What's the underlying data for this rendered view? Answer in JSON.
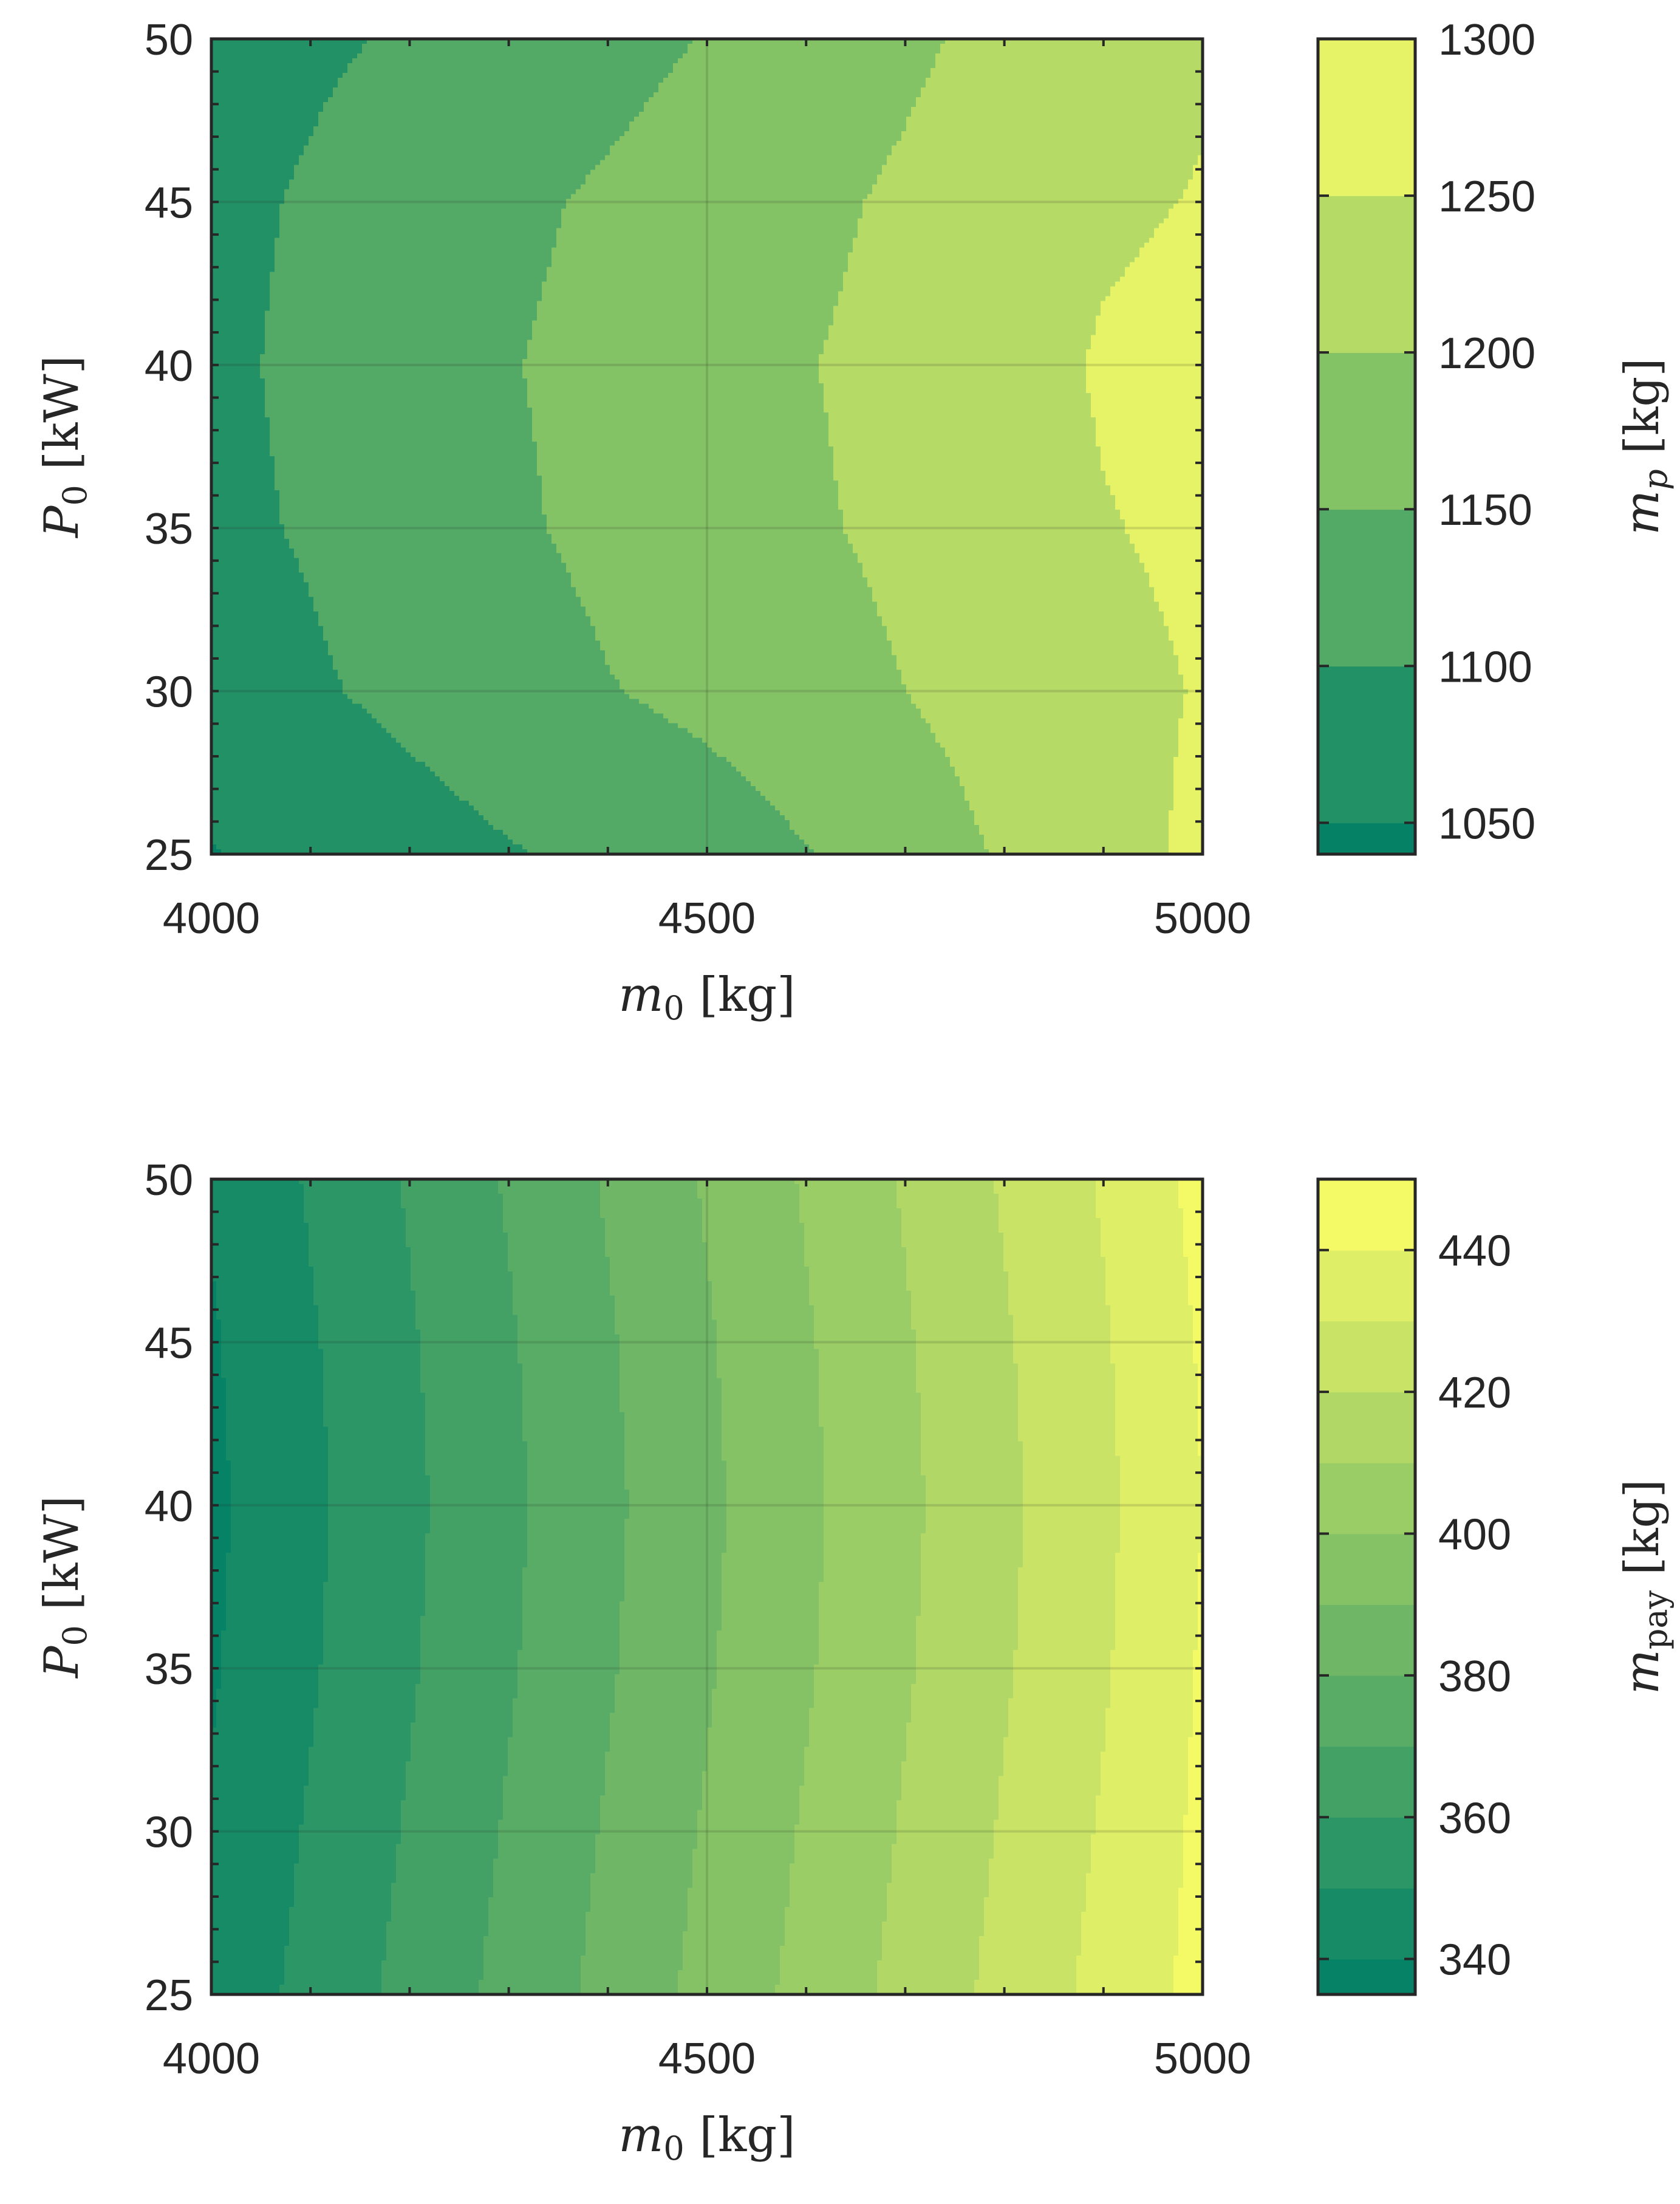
{
  "chart_data": [
    {
      "type": "heatmap",
      "subtype": "filled-contour",
      "xlabel": {
        "var": "m",
        "sub": "0",
        "unit": "[kg]"
      },
      "ylabel": {
        "var": "P",
        "sub": "0",
        "unit": "[kW]"
      },
      "colorbar_label": {
        "var": "m",
        "sub": "p",
        "unit": "[kg]"
      },
      "xlim": [
        4000,
        5000
      ],
      "ylim": [
        25,
        50
      ],
      "xticks": [
        "4000",
        "4500",
        "5000"
      ],
      "yticks": [
        "25",
        "30",
        "35",
        "40",
        "45",
        "50"
      ],
      "clim": [
        1040,
        1300
      ],
      "colorbar_ticks": [
        "1050",
        "1100",
        "1150",
        "1200",
        "1250",
        "1300"
      ],
      "levels": [
        1050,
        1100,
        1150,
        1200,
        1250
      ],
      "grid": true,
      "colormap": "summer",
      "x": [
        4000,
        4100,
        4200,
        4300,
        4400,
        4500,
        4600,
        4700,
        4800,
        4900,
        5000
      ],
      "y": [
        25,
        30,
        35,
        40,
        45,
        50
      ],
      "z": [
        [
          1048,
          1062,
          1080,
          1097,
          1110,
          1125,
          1148,
          1175,
          1205,
          1235,
          1258
        ],
        [
          1078,
          1094,
          1112,
          1130,
          1148,
          1162,
          1180,
          1200,
          1220,
          1240,
          1252
        ],
        [
          1090,
          1104,
          1124,
          1144,
          1160,
          1176,
          1194,
          1210,
          1230,
          1248,
          1257
        ],
        [
          1092,
          1108,
          1128,
          1148,
          1162,
          1178,
          1198,
          1214,
          1234,
          1254,
          1262
        ],
        [
          1090,
          1104,
          1122,
          1142,
          1156,
          1171,
          1190,
          1207,
          1226,
          1244,
          1252
        ],
        [
          1086,
          1094,
          1104,
          1120,
          1136,
          1152,
          1172,
          1192,
          1212,
          1232,
          1246
        ]
      ]
    },
    {
      "type": "heatmap",
      "subtype": "filled-contour",
      "xlabel": {
        "var": "m",
        "sub": "0",
        "unit": "[kg]"
      },
      "ylabel": {
        "var": "P",
        "sub": "0",
        "unit": "[kW]"
      },
      "colorbar_label": {
        "var": "m",
        "sub": "pay",
        "unit": "[kg]"
      },
      "xlim": [
        4000,
        5000
      ],
      "ylim": [
        25,
        50
      ],
      "xticks": [
        "4000",
        "4500",
        "5000"
      ],
      "yticks": [
        "25",
        "30",
        "35",
        "40",
        "45",
        "50"
      ],
      "clim": [
        335,
        450
      ],
      "colorbar_ticks": [
        "340",
        "360",
        "380",
        "400",
        "420",
        "440"
      ],
      "levels": [
        340,
        350,
        360,
        370,
        380,
        390,
        400,
        410,
        420,
        430,
        440
      ],
      "grid": true,
      "colormap": "summer",
      "x": [
        4000,
        4100,
        4200,
        4300,
        4400,
        4500,
        4600,
        4700,
        4800,
        4900,
        5000
      ],
      "y": [
        25,
        30,
        35,
        40,
        45,
        50
      ],
      "z": [
        [
          343,
          353,
          363,
          373,
          383,
          393,
          403,
          413,
          423,
          433,
          443
        ],
        [
          341,
          351,
          361,
          371,
          381,
          391,
          401,
          411,
          421,
          431,
          442
        ],
        [
          339,
          349,
          359,
          369,
          379,
          389,
          399,
          409,
          419,
          429,
          441
        ],
        [
          338,
          348,
          358,
          368,
          378,
          388,
          398,
          408,
          418,
          428,
          440
        ],
        [
          339,
          349,
          359,
          369,
          379,
          389,
          399,
          409,
          419,
          429,
          441
        ],
        [
          341,
          351,
          361,
          371,
          381,
          391,
          401,
          411,
          421,
          431,
          443
        ]
      ]
    }
  ]
}
